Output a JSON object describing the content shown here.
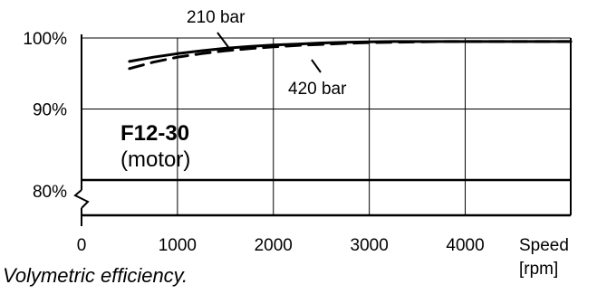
{
  "chart_data": {
    "type": "line",
    "title": "F12-30",
    "subtitle": "(motor)",
    "caption": "Volymetric efficiency.",
    "xlabel": "Speed",
    "xunit": "[rpm]",
    "ylabel": "",
    "xlim": [
      0,
      5100
    ],
    "x_ticks": [
      "0",
      "1000",
      "2000",
      "3000",
      "4000"
    ],
    "x_tick_values": [
      0,
      1000,
      2000,
      3000,
      4000
    ],
    "y_ticks": [
      "80%",
      "90%",
      "100%"
    ],
    "y_tick_values": [
      80,
      90,
      100
    ],
    "ylim_lower": 80,
    "ylim_upper": 100,
    "y_axis_break": true,
    "grid": true,
    "series": [
      {
        "name": "210 bar",
        "style": "solid",
        "x": [
          500,
          750,
          1000,
          1250,
          1500,
          1750,
          2000,
          2250,
          2500,
          2750,
          3000,
          3250,
          3500,
          3750,
          4000,
          4250,
          4500,
          4750,
          5000,
          5100
        ],
        "y": [
          96.7,
          97.3,
          97.8,
          98.2,
          98.55,
          98.8,
          99.0,
          99.15,
          99.3,
          99.4,
          99.45,
          99.5,
          99.5,
          99.5,
          99.5,
          99.5,
          99.5,
          99.5,
          99.5,
          99.5
        ]
      },
      {
        "name": "420 bar",
        "style": "dashed",
        "x": [
          500,
          750,
          1000,
          1250,
          1500,
          1750,
          2000,
          2250,
          2500,
          2750,
          3000,
          3250,
          3500,
          3750,
          4000,
          4250,
          4500,
          4750,
          5000,
          5100
        ],
        "y": [
          95.7,
          96.6,
          97.3,
          97.8,
          98.2,
          98.5,
          98.75,
          98.95,
          99.1,
          99.25,
          99.35,
          99.4,
          99.45,
          99.5,
          99.5,
          99.5,
          99.5,
          99.5,
          99.5,
          99.5
        ]
      }
    ],
    "annotations": [
      {
        "text": "210 bar",
        "series": "210 bar"
      },
      {
        "text": "420 bar",
        "series": "420 bar"
      }
    ]
  }
}
